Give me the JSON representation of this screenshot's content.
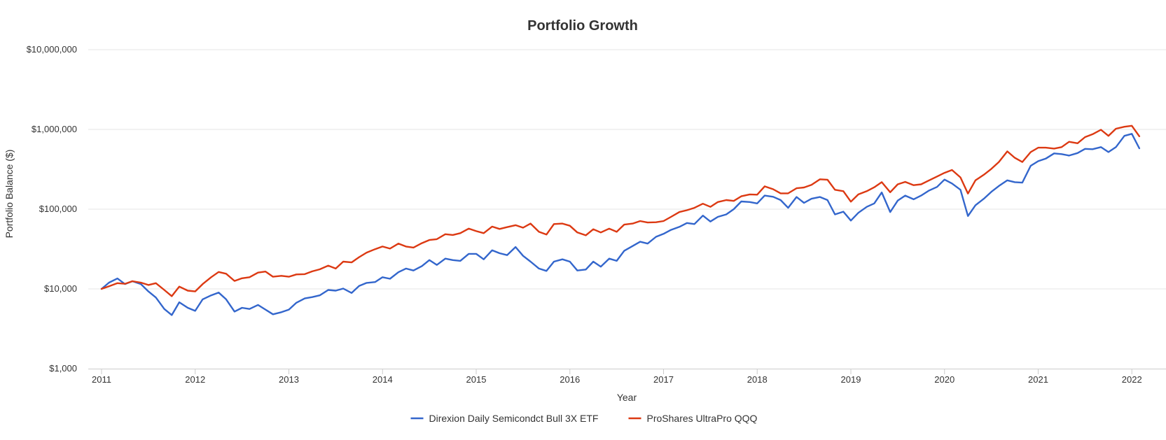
{
  "chart_data": {
    "type": "line",
    "title": "Portfolio Growth",
    "xlabel": "Year",
    "ylabel": "Portfolio Balance ($)",
    "y_scale": "log",
    "ylim": [
      1000,
      10000000
    ],
    "xlim": [
      2011.0,
      2022.2
    ],
    "x_ticks": [
      {
        "value": 2011,
        "label": "2011"
      },
      {
        "value": 2012,
        "label": "2012"
      },
      {
        "value": 2013,
        "label": "2013"
      },
      {
        "value": 2014,
        "label": "2014"
      },
      {
        "value": 2015,
        "label": "2015"
      },
      {
        "value": 2016,
        "label": "2016"
      },
      {
        "value": 2017,
        "label": "2017"
      },
      {
        "value": 2018,
        "label": "2018"
      },
      {
        "value": 2019,
        "label": "2019"
      },
      {
        "value": 2020,
        "label": "2020"
      },
      {
        "value": 2021,
        "label": "2021"
      },
      {
        "value": 2022,
        "label": "2022"
      }
    ],
    "y_ticks": [
      {
        "value": 1000,
        "label": "$1,000"
      },
      {
        "value": 10000,
        "label": "$10,000"
      },
      {
        "value": 100000,
        "label": "$100,000"
      },
      {
        "value": 1000000,
        "label": "$1,000,000"
      },
      {
        "value": 10000000,
        "label": "$10,000,000"
      }
    ],
    "grid": true,
    "legend_position": "bottom-center",
    "series": [
      {
        "name": "Direxion Daily Semicondct Bull 3X ETF",
        "color": "#3366cc",
        "points": [
          [
            2011.0,
            10000
          ],
          [
            2011.08,
            12000
          ],
          [
            2011.17,
            13500
          ],
          [
            2011.25,
            11500
          ],
          [
            2011.33,
            12500
          ],
          [
            2011.42,
            11500
          ],
          [
            2011.5,
            9300
          ],
          [
            2011.58,
            7800
          ],
          [
            2011.67,
            5600
          ],
          [
            2011.75,
            4700
          ],
          [
            2011.83,
            6800
          ],
          [
            2011.92,
            5800
          ],
          [
            2012.0,
            5300
          ],
          [
            2012.08,
            7400
          ],
          [
            2012.17,
            8300
          ],
          [
            2012.25,
            9000
          ],
          [
            2012.33,
            7400
          ],
          [
            2012.42,
            5200
          ],
          [
            2012.5,
            5800
          ],
          [
            2012.58,
            5600
          ],
          [
            2012.67,
            6300
          ],
          [
            2012.75,
            5500
          ],
          [
            2012.83,
            4800
          ],
          [
            2012.92,
            5100
          ],
          [
            2013.0,
            5500
          ],
          [
            2013.08,
            6700
          ],
          [
            2013.17,
            7600
          ],
          [
            2013.25,
            7900
          ],
          [
            2013.33,
            8300
          ],
          [
            2013.42,
            9700
          ],
          [
            2013.5,
            9500
          ],
          [
            2013.58,
            10100
          ],
          [
            2013.67,
            8900
          ],
          [
            2013.75,
            10900
          ],
          [
            2013.83,
            11900
          ],
          [
            2013.92,
            12200
          ],
          [
            2014.0,
            14000
          ],
          [
            2014.08,
            13400
          ],
          [
            2014.17,
            16200
          ],
          [
            2014.25,
            18000
          ],
          [
            2014.33,
            17000
          ],
          [
            2014.42,
            19300
          ],
          [
            2014.5,
            23000
          ],
          [
            2014.58,
            20000
          ],
          [
            2014.67,
            24000
          ],
          [
            2014.75,
            23000
          ],
          [
            2014.83,
            22500
          ],
          [
            2014.92,
            27500
          ],
          [
            2015.0,
            27500
          ],
          [
            2015.08,
            23500
          ],
          [
            2015.17,
            30500
          ],
          [
            2015.25,
            28000
          ],
          [
            2015.33,
            26500
          ],
          [
            2015.42,
            33500
          ],
          [
            2015.5,
            26000
          ],
          [
            2015.58,
            22000
          ],
          [
            2015.67,
            18000
          ],
          [
            2015.75,
            16800
          ],
          [
            2015.83,
            22000
          ],
          [
            2015.92,
            23500
          ],
          [
            2016.0,
            22000
          ],
          [
            2016.08,
            17000
          ],
          [
            2016.17,
            17500
          ],
          [
            2016.25,
            22000
          ],
          [
            2016.33,
            19000
          ],
          [
            2016.42,
            24000
          ],
          [
            2016.5,
            22500
          ],
          [
            2016.58,
            30000
          ],
          [
            2016.67,
            34500
          ],
          [
            2016.75,
            39000
          ],
          [
            2016.83,
            37000
          ],
          [
            2016.92,
            45000
          ],
          [
            2017.0,
            49000
          ],
          [
            2017.08,
            55000
          ],
          [
            2017.17,
            60000
          ],
          [
            2017.25,
            67000
          ],
          [
            2017.33,
            65000
          ],
          [
            2017.42,
            83000
          ],
          [
            2017.5,
            70000
          ],
          [
            2017.58,
            80000
          ],
          [
            2017.67,
            86000
          ],
          [
            2017.75,
            100000
          ],
          [
            2017.83,
            125000
          ],
          [
            2017.92,
            123000
          ],
          [
            2018.0,
            118000
          ],
          [
            2018.08,
            148000
          ],
          [
            2018.17,
            143000
          ],
          [
            2018.25,
            130000
          ],
          [
            2018.33,
            104000
          ],
          [
            2018.42,
            142000
          ],
          [
            2018.5,
            120000
          ],
          [
            2018.58,
            135000
          ],
          [
            2018.67,
            142000
          ],
          [
            2018.75,
            130000
          ],
          [
            2018.83,
            86000
          ],
          [
            2018.92,
            93000
          ],
          [
            2019.0,
            72000
          ],
          [
            2019.08,
            90000
          ],
          [
            2019.17,
            107000
          ],
          [
            2019.25,
            118000
          ],
          [
            2019.33,
            162000
          ],
          [
            2019.42,
            92000
          ],
          [
            2019.5,
            128000
          ],
          [
            2019.58,
            148000
          ],
          [
            2019.67,
            133000
          ],
          [
            2019.75,
            148000
          ],
          [
            2019.83,
            170000
          ],
          [
            2019.92,
            190000
          ],
          [
            2020.0,
            235000
          ],
          [
            2020.08,
            210000
          ],
          [
            2020.17,
            175000
          ],
          [
            2020.25,
            82000
          ],
          [
            2020.33,
            112000
          ],
          [
            2020.42,
            135000
          ],
          [
            2020.5,
            165000
          ],
          [
            2020.58,
            195000
          ],
          [
            2020.67,
            230000
          ],
          [
            2020.75,
            218000
          ],
          [
            2020.83,
            215000
          ],
          [
            2020.92,
            350000
          ],
          [
            2021.0,
            400000
          ],
          [
            2021.08,
            430000
          ],
          [
            2021.17,
            500000
          ],
          [
            2021.25,
            490000
          ],
          [
            2021.33,
            470000
          ],
          [
            2021.42,
            505000
          ],
          [
            2021.5,
            570000
          ],
          [
            2021.58,
            565000
          ],
          [
            2021.67,
            600000
          ],
          [
            2021.75,
            520000
          ],
          [
            2021.83,
            600000
          ],
          [
            2021.92,
            830000
          ],
          [
            2022.0,
            880000
          ],
          [
            2022.08,
            580000
          ]
        ]
      },
      {
        "name": "ProShares UltraPro QQQ",
        "color": "#dc3912",
        "points": [
          [
            2011.0,
            10000
          ],
          [
            2011.08,
            10800
          ],
          [
            2011.17,
            11800
          ],
          [
            2011.25,
            11600
          ],
          [
            2011.33,
            12500
          ],
          [
            2011.42,
            12000
          ],
          [
            2011.5,
            11200
          ],
          [
            2011.58,
            11800
          ],
          [
            2011.67,
            9700
          ],
          [
            2011.75,
            8100
          ],
          [
            2011.83,
            10700
          ],
          [
            2011.92,
            9500
          ],
          [
            2012.0,
            9300
          ],
          [
            2012.08,
            11500
          ],
          [
            2012.17,
            14000
          ],
          [
            2012.25,
            16300
          ],
          [
            2012.33,
            15500
          ],
          [
            2012.42,
            12600
          ],
          [
            2012.5,
            13600
          ],
          [
            2012.58,
            14000
          ],
          [
            2012.67,
            16000
          ],
          [
            2012.75,
            16500
          ],
          [
            2012.83,
            14200
          ],
          [
            2012.92,
            14600
          ],
          [
            2013.0,
            14200
          ],
          [
            2013.08,
            15200
          ],
          [
            2013.17,
            15300
          ],
          [
            2013.25,
            16600
          ],
          [
            2013.33,
            17600
          ],
          [
            2013.42,
            19600
          ],
          [
            2013.5,
            18000
          ],
          [
            2013.58,
            22000
          ],
          [
            2013.67,
            21500
          ],
          [
            2013.75,
            25000
          ],
          [
            2013.83,
            28500
          ],
          [
            2013.92,
            31500
          ],
          [
            2014.0,
            34000
          ],
          [
            2014.08,
            32000
          ],
          [
            2014.17,
            37000
          ],
          [
            2014.25,
            34000
          ],
          [
            2014.33,
            33000
          ],
          [
            2014.42,
            37500
          ],
          [
            2014.5,
            41000
          ],
          [
            2014.58,
            42000
          ],
          [
            2014.67,
            48500
          ],
          [
            2014.75,
            47500
          ],
          [
            2014.83,
            50000
          ],
          [
            2014.92,
            57000
          ],
          [
            2015.0,
            53000
          ],
          [
            2015.08,
            50000
          ],
          [
            2015.17,
            60500
          ],
          [
            2015.25,
            56500
          ],
          [
            2015.33,
            59500
          ],
          [
            2015.42,
            63000
          ],
          [
            2015.5,
            58500
          ],
          [
            2015.58,
            66000
          ],
          [
            2015.67,
            52000
          ],
          [
            2015.75,
            48000
          ],
          [
            2015.83,
            65000
          ],
          [
            2015.92,
            66000
          ],
          [
            2016.0,
            62000
          ],
          [
            2016.08,
            51000
          ],
          [
            2016.17,
            47000
          ],
          [
            2016.25,
            56000
          ],
          [
            2016.33,
            51000
          ],
          [
            2016.42,
            57000
          ],
          [
            2016.5,
            52000
          ],
          [
            2016.58,
            64000
          ],
          [
            2016.67,
            66000
          ],
          [
            2016.75,
            71000
          ],
          [
            2016.83,
            68000
          ],
          [
            2016.92,
            68500
          ],
          [
            2017.0,
            71000
          ],
          [
            2017.08,
            80000
          ],
          [
            2017.17,
            92000
          ],
          [
            2017.25,
            97000
          ],
          [
            2017.33,
            104000
          ],
          [
            2017.42,
            117000
          ],
          [
            2017.5,
            107000
          ],
          [
            2017.58,
            123000
          ],
          [
            2017.67,
            130000
          ],
          [
            2017.75,
            127000
          ],
          [
            2017.83,
            145000
          ],
          [
            2017.92,
            153000
          ],
          [
            2018.0,
            152000
          ],
          [
            2018.08,
            193000
          ],
          [
            2018.17,
            178000
          ],
          [
            2018.25,
            158000
          ],
          [
            2018.33,
            158000
          ],
          [
            2018.42,
            183000
          ],
          [
            2018.5,
            187000
          ],
          [
            2018.58,
            202000
          ],
          [
            2018.67,
            237000
          ],
          [
            2018.75,
            234000
          ],
          [
            2018.83,
            175000
          ],
          [
            2018.92,
            168000
          ],
          [
            2019.0,
            124000
          ],
          [
            2019.08,
            153000
          ],
          [
            2019.17,
            168000
          ],
          [
            2019.25,
            188000
          ],
          [
            2019.33,
            218000
          ],
          [
            2019.42,
            163000
          ],
          [
            2019.5,
            205000
          ],
          [
            2019.58,
            220000
          ],
          [
            2019.67,
            200000
          ],
          [
            2019.75,
            205000
          ],
          [
            2019.83,
            228000
          ],
          [
            2019.92,
            257000
          ],
          [
            2020.0,
            285000
          ],
          [
            2020.08,
            310000
          ],
          [
            2020.17,
            250000
          ],
          [
            2020.25,
            157000
          ],
          [
            2020.33,
            230000
          ],
          [
            2020.42,
            270000
          ],
          [
            2020.5,
            320000
          ],
          [
            2020.58,
            390000
          ],
          [
            2020.67,
            530000
          ],
          [
            2020.75,
            440000
          ],
          [
            2020.83,
            390000
          ],
          [
            2020.92,
            520000
          ],
          [
            2021.0,
            590000
          ],
          [
            2021.08,
            590000
          ],
          [
            2021.17,
            575000
          ],
          [
            2021.25,
            600000
          ],
          [
            2021.33,
            700000
          ],
          [
            2021.42,
            670000
          ],
          [
            2021.5,
            800000
          ],
          [
            2021.58,
            870000
          ],
          [
            2021.67,
            990000
          ],
          [
            2021.75,
            830000
          ],
          [
            2021.83,
            1020000
          ],
          [
            2021.92,
            1080000
          ],
          [
            2022.0,
            1110000
          ],
          [
            2022.08,
            820000
          ]
        ]
      }
    ]
  }
}
